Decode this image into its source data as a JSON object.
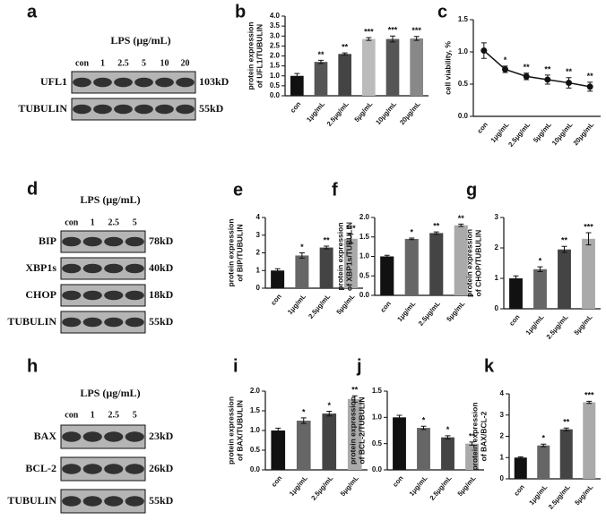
{
  "chart_data": [
    {
      "label": "b",
      "type": "bar",
      "ylabel": [
        "protein expression",
        "of UFL1/TUBULIN"
      ],
      "categories": [
        "con",
        "1μg/mL",
        "2.5μg/mL",
        "5μg/mL",
        "10μg/mL",
        "20μg/mL"
      ],
      "values": [
        1.0,
        1.7,
        2.1,
        2.85,
        2.85,
        2.88
      ],
      "errors": [
        0.12,
        0.08,
        0.05,
        0.07,
        0.15,
        0.1
      ],
      "annotations": [
        null,
        "**",
        "**",
        "***",
        "***",
        "***"
      ],
      "colors": [
        "#111111",
        "#555555",
        "#444444",
        "#bbbbbb",
        "#555555",
        "#888888"
      ],
      "ylim": [
        0,
        4
      ],
      "yticks": [
        {
          "value": 0,
          "label": "0.0"
        },
        {
          "value": 0.5,
          "label": "0.5"
        },
        {
          "value": 1,
          "label": "1.0"
        },
        {
          "value": 1.5,
          "label": "1.5"
        },
        {
          "value": 2,
          "label": "2.0"
        },
        {
          "value": 2.5,
          "label": "2.5"
        },
        {
          "value": 3,
          "label": "3.0"
        },
        {
          "value": 3.5,
          "label": "3.5"
        },
        {
          "value": 4,
          "label": "4.0"
        }
      ]
    },
    {
      "label": "c",
      "type": "line",
      "ylabel": [
        "cell viability, %"
      ],
      "categories": [
        "con",
        "1μg/mL",
        "2.5μg/mL",
        "5μg/mL",
        "10μg/mL",
        "20μg/mL"
      ],
      "values": [
        1.02,
        0.73,
        0.62,
        0.57,
        0.52,
        0.46
      ],
      "errors": [
        0.12,
        0.05,
        0.05,
        0.07,
        0.08,
        0.07
      ],
      "annotations": [
        null,
        "*",
        "**",
        "**",
        "**",
        "**"
      ],
      "color": "#111111",
      "ylim": [
        0,
        1.5
      ],
      "yticks": [
        {
          "value": 0,
          "label": "0.0"
        },
        {
          "value": 0.5,
          "label": "0.5"
        },
        {
          "value": 1,
          "label": "1.0"
        },
        {
          "value": 1.5,
          "label": "1.5"
        }
      ]
    },
    {
      "label": "e",
      "type": "bar",
      "ylabel": [
        "protein expression",
        "of BIP/TUBULIN"
      ],
      "categories": [
        "con",
        "1μg/mL",
        "2.5μg/mL",
        "5μg/mL"
      ],
      "values": [
        1.0,
        1.85,
        2.3,
        2.8
      ],
      "errors": [
        0.1,
        0.15,
        0.08,
        0.25
      ],
      "annotations": [
        null,
        "*",
        "**",
        "***"
      ],
      "colors": [
        "#111111",
        "#666666",
        "#444444",
        "#aaaaaa"
      ],
      "ylim": [
        0,
        4
      ],
      "yticks": [
        0,
        1,
        2,
        3,
        4
      ]
    },
    {
      "label": "f",
      "type": "bar",
      "ylabel": [
        "protein expression",
        "of XBP1s/TUBULIN"
      ],
      "categories": [
        "con",
        "1μg/mL",
        "2.5μg/mL",
        "5μg/mL"
      ],
      "values": [
        1.0,
        1.45,
        1.6,
        1.8
      ],
      "errors": [
        0.03,
        0.02,
        0.03,
        0.03
      ],
      "annotations": [
        null,
        "*",
        "**",
        "**"
      ],
      "colors": [
        "#111111",
        "#666666",
        "#444444",
        "#aaaaaa"
      ],
      "ylim": [
        0,
        2
      ],
      "yticks": [
        {
          "value": 0,
          "label": "0.0"
        },
        {
          "value": 0.5,
          "label": "0.5"
        },
        {
          "value": 1,
          "label": "1.0"
        },
        {
          "value": 1.5,
          "label": "1.5"
        },
        {
          "value": 2,
          "label": "2.0"
        }
      ]
    },
    {
      "label": "g",
      "type": "bar",
      "ylabel": [
        "protein expression",
        "of CHOP/TUBULIN"
      ],
      "categories": [
        "con",
        "1μg/mL",
        "2.5μg/mL",
        "5μg/mL"
      ],
      "values": [
        1.0,
        1.3,
        1.95,
        2.3
      ],
      "errors": [
        0.08,
        0.08,
        0.1,
        0.2
      ],
      "annotations": [
        null,
        "*",
        "**",
        "***"
      ],
      "colors": [
        "#111111",
        "#666666",
        "#444444",
        "#aaaaaa"
      ],
      "ylim": [
        0,
        3
      ],
      "yticks": [
        0,
        1,
        2,
        3
      ]
    },
    {
      "label": "i",
      "type": "bar",
      "ylabel": [
        "protein expression",
        "of BAX/TUBULIN"
      ],
      "categories": [
        "con",
        "1μg/mL",
        "2.5μg/mL",
        "5μg/mL"
      ],
      "values": [
        1.0,
        1.25,
        1.43,
        1.8
      ],
      "errors": [
        0.06,
        0.07,
        0.06,
        0.08
      ],
      "annotations": [
        null,
        "*",
        "*",
        "**"
      ],
      "colors": [
        "#111111",
        "#666666",
        "#444444",
        "#aaaaaa"
      ],
      "ylim": [
        0,
        2
      ],
      "yticks": [
        {
          "value": 0,
          "label": "0.0"
        },
        {
          "value": 0.5,
          "label": "0.5"
        },
        {
          "value": 1,
          "label": "1.0"
        },
        {
          "value": 1.5,
          "label": "1.5"
        },
        {
          "value": 2,
          "label": "2.0"
        }
      ]
    },
    {
      "label": "j",
      "type": "bar",
      "ylabel": [
        "protein expression",
        "of BCL-2/TUBULIN"
      ],
      "categories": [
        "con",
        "1μg/mL",
        "2.5μg/mL",
        "5μg/mL"
      ],
      "values": [
        1.0,
        0.8,
        0.62,
        0.5
      ],
      "errors": [
        0.04,
        0.03,
        0.03,
        0.03
      ],
      "annotations": [
        null,
        "*",
        "*",
        "**"
      ],
      "colors": [
        "#111111",
        "#666666",
        "#444444",
        "#aaaaaa"
      ],
      "ylim": [
        0,
        1.5
      ],
      "yticks": [
        {
          "value": 0,
          "label": "0.0"
        },
        {
          "value": 0.5,
          "label": "0.5"
        },
        {
          "value": 1,
          "label": "1.0"
        },
        {
          "value": 1.5,
          "label": "1.5"
        }
      ]
    },
    {
      "label": "k",
      "type": "bar",
      "ylabel": [
        "protein expression",
        "of BAX/BCL-2"
      ],
      "categories": [
        "con",
        "1μg/mL",
        "2.5μg/mL",
        "5μg/mL"
      ],
      "values": [
        1.0,
        1.57,
        2.33,
        3.6
      ],
      "errors": [
        0.03,
        0.06,
        0.06,
        0.05
      ],
      "annotations": [
        null,
        "*",
        "**",
        "***"
      ],
      "colors": [
        "#111111",
        "#666666",
        "#444444",
        "#aaaaaa"
      ],
      "ylim": [
        0,
        4
      ],
      "yticks": [
        0,
        1,
        2,
        3,
        4
      ]
    }
  ],
  "blots": [
    {
      "label": "a",
      "header": "LPS (μg/mL)",
      "lanes": [
        "con",
        "1",
        "2.5",
        "5",
        "10",
        "20"
      ],
      "rows": [
        {
          "name": "UFL1",
          "size": "103kD"
        },
        {
          "name": "TUBULIN",
          "size": "55kD"
        }
      ]
    },
    {
      "label": "d",
      "header": "LPS (μg/mL)",
      "lanes": [
        "con",
        "1",
        "2.5",
        "5"
      ],
      "rows": [
        {
          "name": "BIP",
          "size": "78kD"
        },
        {
          "name": "XBP1s",
          "size": "40kD"
        },
        {
          "name": "CHOP",
          "size": "18kD"
        },
        {
          "name": "TUBULIN",
          "size": "55kD"
        }
      ]
    },
    {
      "label": "h",
      "header": "LPS (μg/mL)",
      "lanes": [
        "con",
        "1",
        "2.5",
        "5"
      ],
      "rows": [
        {
          "name": "BAX",
          "size": "23kD"
        },
        {
          "name": "BCL-2",
          "size": "26kD"
        },
        {
          "name": "TUBULIN",
          "size": "55kD"
        }
      ]
    }
  ]
}
